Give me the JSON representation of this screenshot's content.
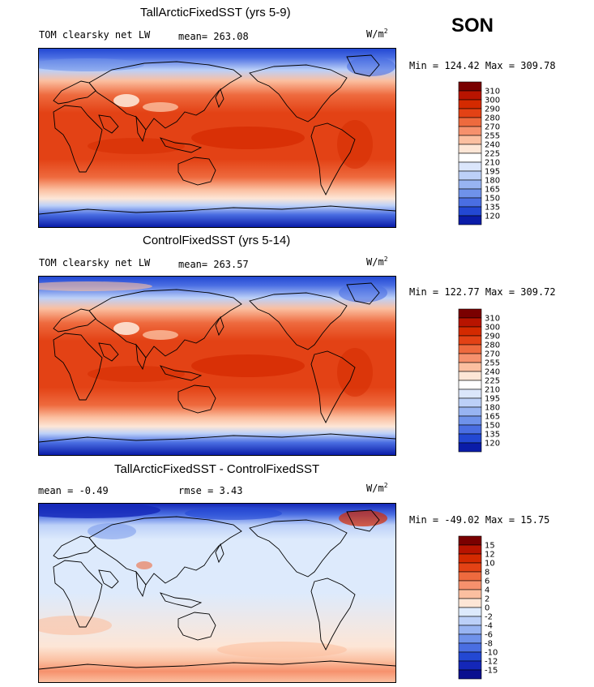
{
  "season": "SON",
  "panels": [
    {
      "title": "TallArcticFixedSST (yrs 5-9)",
      "left_label": "TOM clearsky net LW",
      "mid_label": "mean= 263.08",
      "units": "W/m",
      "units_exp": "2",
      "minmax": "Min = 124.42 Max = 309.78",
      "kind": "absolute"
    },
    {
      "title": "ControlFixedSST (yrs 5-14)",
      "left_label": "TOM clearsky net LW",
      "mid_label": "mean= 263.57",
      "units": "W/m",
      "units_exp": "2",
      "minmax": "Min = 122.77 Max = 309.72",
      "kind": "absolute"
    },
    {
      "title": "TallArcticFixedSST - ControlFixedSST",
      "left_label": "mean =   -0.49",
      "mid_label": "rmse =    3.43",
      "units": "W/m",
      "units_exp": "2",
      "minmax": "Min = -49.02 Max =  15.75",
      "kind": "difference"
    }
  ],
  "colorbars": {
    "absolute": {
      "labels": [
        "310",
        "300",
        "290",
        "280",
        "270",
        "255",
        "240",
        "225",
        "210",
        "195",
        "180",
        "165",
        "150",
        "135",
        "120"
      ],
      "colors": [
        "#7a0000",
        "#b81400",
        "#d42a00",
        "#e34215",
        "#ee6a3e",
        "#f6916d",
        "#fbbfa0",
        "#fde6d6",
        "#ffffff",
        "#dbe6fb",
        "#bcd0f8",
        "#98b4f2",
        "#6f92ea",
        "#4a6ee2",
        "#2348d3",
        "#0a1ca8"
      ]
    },
    "difference": {
      "labels": [
        "15",
        "12",
        "10",
        "8",
        "6",
        "4",
        "2",
        "0",
        "-2",
        "-4",
        "-6",
        "-8",
        "-10",
        "-12",
        "-15"
      ],
      "colors": [
        "#7a0000",
        "#b81400",
        "#d42a00",
        "#e34215",
        "#ee6a3e",
        "#f6916d",
        "#fbbfa0",
        "#fde6d6",
        "#ddeafc",
        "#bcd0f8",
        "#98b4f2",
        "#6f92ea",
        "#4a6ee2",
        "#2348d3",
        "#1427b8",
        "#0a0f8f"
      ]
    }
  }
}
